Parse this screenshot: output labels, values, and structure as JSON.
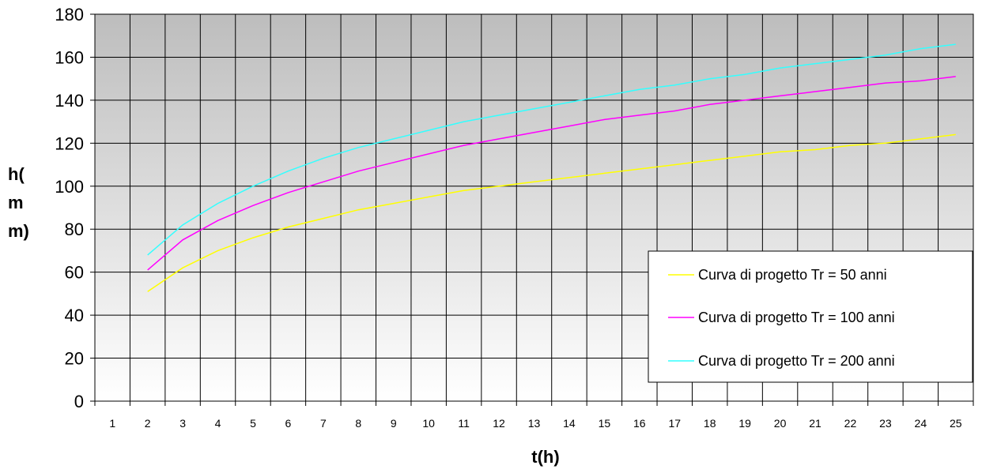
{
  "chart_data": {
    "type": "line",
    "xlabel": "t(h)",
    "ylabel_lines": [
      "h(",
      "m",
      "m)"
    ],
    "categories": [
      "1",
      "2",
      "3",
      "4",
      "5",
      "6",
      "7",
      "8",
      "9",
      "10",
      "11",
      "12",
      "13",
      "14",
      "15",
      "16",
      "17",
      "18",
      "19",
      "20",
      "21",
      "22",
      "23",
      "24",
      "25"
    ],
    "ylim": [
      0,
      180
    ],
    "yticks": [
      0,
      20,
      40,
      60,
      80,
      100,
      120,
      140,
      160,
      180
    ],
    "grid": true,
    "legend_position": "bottom-right",
    "series": [
      {
        "name": "Curva di progetto Tr = 50 anni",
        "color": "#ffff00",
        "x": [
          2,
          3,
          4,
          5,
          6,
          7,
          8,
          9,
          10,
          11,
          12,
          13,
          14,
          15,
          16,
          17,
          18,
          19,
          20,
          21,
          22,
          23,
          24,
          25
        ],
        "values": [
          51,
          62,
          70,
          76,
          81,
          85,
          89,
          92,
          95,
          98,
          100,
          102,
          104,
          106,
          108,
          110,
          112,
          114,
          116,
          117,
          119,
          120,
          122,
          124
        ]
      },
      {
        "name": "Curva di progetto Tr = 100 anni",
        "color": "#ff00ff",
        "x": [
          2,
          3,
          4,
          5,
          6,
          7,
          8,
          9,
          10,
          11,
          12,
          13,
          14,
          15,
          16,
          17,
          18,
          19,
          20,
          21,
          22,
          23,
          24,
          25
        ],
        "values": [
          61,
          75,
          84,
          91,
          97,
          102,
          107,
          111,
          115,
          119,
          122,
          125,
          128,
          131,
          133,
          135,
          138,
          140,
          142,
          144,
          146,
          148,
          149,
          151
        ]
      },
      {
        "name": "Curva di progetto Tr = 200 anni",
        "color": "#33ffff",
        "x": [
          2,
          3,
          4,
          5,
          6,
          7,
          8,
          9,
          10,
          11,
          12,
          13,
          14,
          15,
          16,
          17,
          18,
          19,
          20,
          21,
          22,
          23,
          24,
          25
        ],
        "values": [
          68,
          82,
          92,
          100,
          107,
          113,
          118,
          122,
          126,
          130,
          133,
          136,
          139,
          142,
          145,
          147,
          150,
          152,
          155,
          157,
          159,
          161,
          164,
          166
        ]
      }
    ]
  }
}
